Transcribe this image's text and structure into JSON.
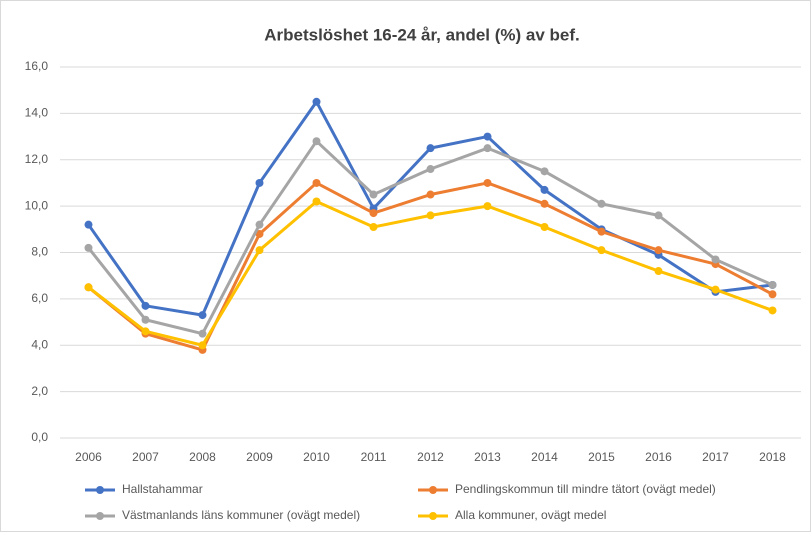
{
  "chart_data": {
    "type": "line",
    "title": "Arbetslöshet 16-24 år, andel (%) av bef.",
    "categories": [
      "2006",
      "2007",
      "2008",
      "2009",
      "2010",
      "2011",
      "2012",
      "2013",
      "2014",
      "2015",
      "2016",
      "2017",
      "2018"
    ],
    "series": [
      {
        "name": "Hallstahammar",
        "color": "#4472c4",
        "values": [
          9.2,
          5.7,
          5.3,
          11.0,
          14.5,
          9.9,
          12.5,
          13.0,
          10.7,
          9.0,
          7.9,
          6.3,
          6.6
        ]
      },
      {
        "name": "Pendlingskommun till mindre tätort (ovägt medel)",
        "color": "#ed7d31",
        "values": [
          6.5,
          4.5,
          3.8,
          8.8,
          11.0,
          9.7,
          10.5,
          11.0,
          10.1,
          8.9,
          8.1,
          7.5,
          6.2
        ]
      },
      {
        "name": "Västmanlands läns kommuner (ovägt medel)",
        "color": "#a5a5a5",
        "values": [
          8.2,
          5.1,
          4.5,
          9.2,
          12.8,
          10.5,
          11.6,
          12.5,
          11.5,
          10.1,
          9.6,
          7.7,
          6.6
        ]
      },
      {
        "name": "Alla kommuner, ovägt medel",
        "color": "#ffc000",
        "values": [
          6.5,
          4.6,
          4.0,
          8.1,
          10.2,
          9.1,
          9.6,
          10.0,
          9.1,
          8.1,
          7.2,
          6.4,
          5.5
        ]
      }
    ],
    "ylim": [
      0,
      16
    ],
    "yticks": [
      {
        "value": 0,
        "label": "0,0"
      },
      {
        "value": 2,
        "label": "2,0"
      },
      {
        "value": 4,
        "label": "4,0"
      },
      {
        "value": 6,
        "label": "6,0"
      },
      {
        "value": 8,
        "label": "8,0"
      },
      {
        "value": 10,
        "label": "10,0"
      },
      {
        "value": 12,
        "label": "12,0"
      },
      {
        "value": 14,
        "label": "14,0"
      },
      {
        "value": 16,
        "label": "16,0"
      }
    ],
    "grid": true,
    "legend": "bottom"
  }
}
